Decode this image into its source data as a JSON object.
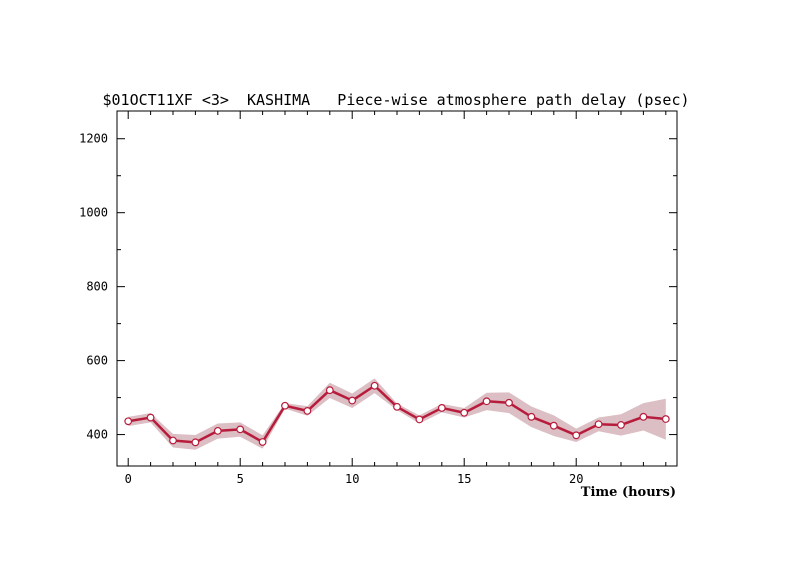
{
  "chart_data": {
    "type": "line",
    "title": "$01OCT11XF <3>  KASHIMA   Piece-wise atmosphere path delay (psec)",
    "xlabel": "Time (hours)",
    "ylabel": "",
    "xlim": [
      -0.5,
      24.5
    ],
    "ylim": [
      315,
      1275
    ],
    "x_ticks": [
      0,
      5,
      10,
      15,
      20
    ],
    "y_ticks": [
      400,
      600,
      800,
      1000,
      1200
    ],
    "grid": false,
    "colors": {
      "line": "#b81c3c",
      "band": "#dbbfc4",
      "marker_fill": "#ffffff"
    },
    "series": [
      {
        "x": [
          0,
          1,
          2,
          3,
          4,
          5,
          6,
          7,
          8,
          9,
          10,
          11,
          12,
          13,
          14,
          15,
          16,
          17,
          18,
          19,
          20,
          21,
          22,
          23,
          24
        ],
        "values": [
          436,
          446,
          384,
          379,
          410,
          414,
          380,
          478,
          464,
          520,
          492,
          532,
          475,
          441,
          472,
          459,
          490,
          486,
          448,
          424,
          398,
          428,
          426,
          448,
          442
        ],
        "upper": [
          448,
          458,
          402,
          399,
          430,
          433,
          398,
          485,
          477,
          540,
          511,
          552,
          484,
          452,
          483,
          472,
          513,
          514,
          476,
          452,
          416,
          446,
          455,
          485,
          497
        ],
        "lower": [
          423,
          433,
          365,
          359,
          389,
          394,
          362,
          470,
          451,
          499,
          472,
          512,
          466,
          430,
          460,
          446,
          466,
          458,
          420,
          396,
          380,
          409,
          397,
          411,
          386
        ]
      }
    ]
  }
}
